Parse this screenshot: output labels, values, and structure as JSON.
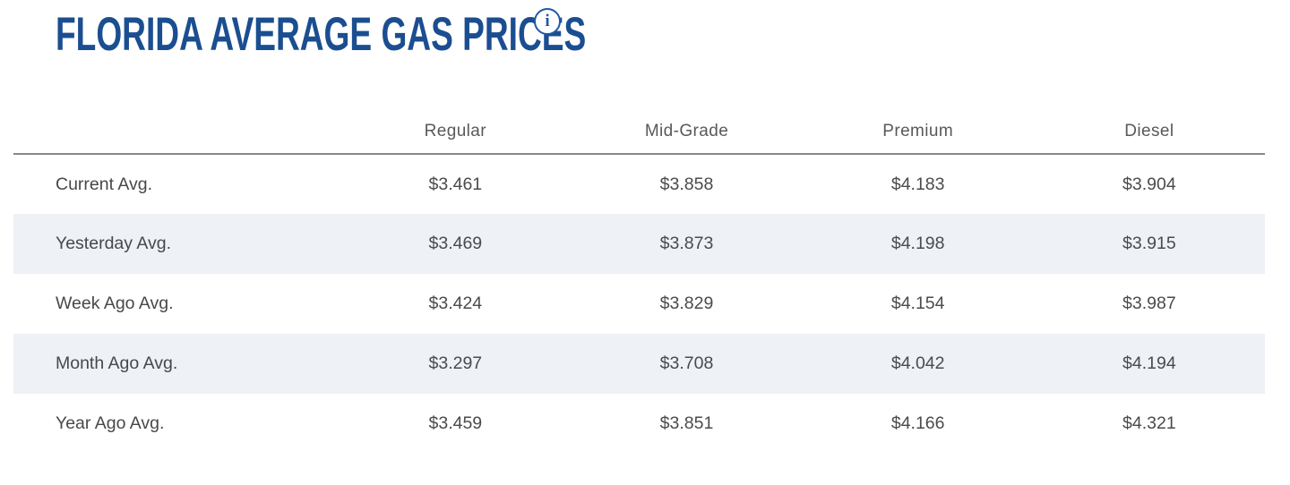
{
  "page": {
    "title": "FLORIDA AVERAGE GAS PRICES",
    "info_icon_glyph": "i"
  },
  "colors": {
    "brand_blue": "#1b4e91",
    "info_icon_blue": "#1f5aa5",
    "header_text": "#58595b",
    "body_text": "#4a4b4d",
    "row_stripe": "#eef1f5",
    "header_divider": "#85878a"
  },
  "chart_data": {
    "type": "table",
    "title": "FLORIDA AVERAGE GAS PRICES",
    "columns": [
      "Regular",
      "Mid-Grade",
      "Premium",
      "Diesel"
    ],
    "rows": [
      {
        "label": "Current Avg.",
        "values": [
          "$3.461",
          "$3.858",
          "$4.183",
          "$3.904"
        ]
      },
      {
        "label": "Yesterday Avg.",
        "values": [
          "$3.469",
          "$3.873",
          "$4.198",
          "$3.915"
        ]
      },
      {
        "label": "Week Ago Avg.",
        "values": [
          "$3.424",
          "$3.829",
          "$4.154",
          "$3.987"
        ]
      },
      {
        "label": "Month Ago Avg.",
        "values": [
          "$3.297",
          "$3.708",
          "$4.042",
          "$4.194"
        ]
      },
      {
        "label": "Year Ago Avg.",
        "values": [
          "$3.459",
          "$3.851",
          "$4.166",
          "$4.321"
        ]
      }
    ]
  }
}
